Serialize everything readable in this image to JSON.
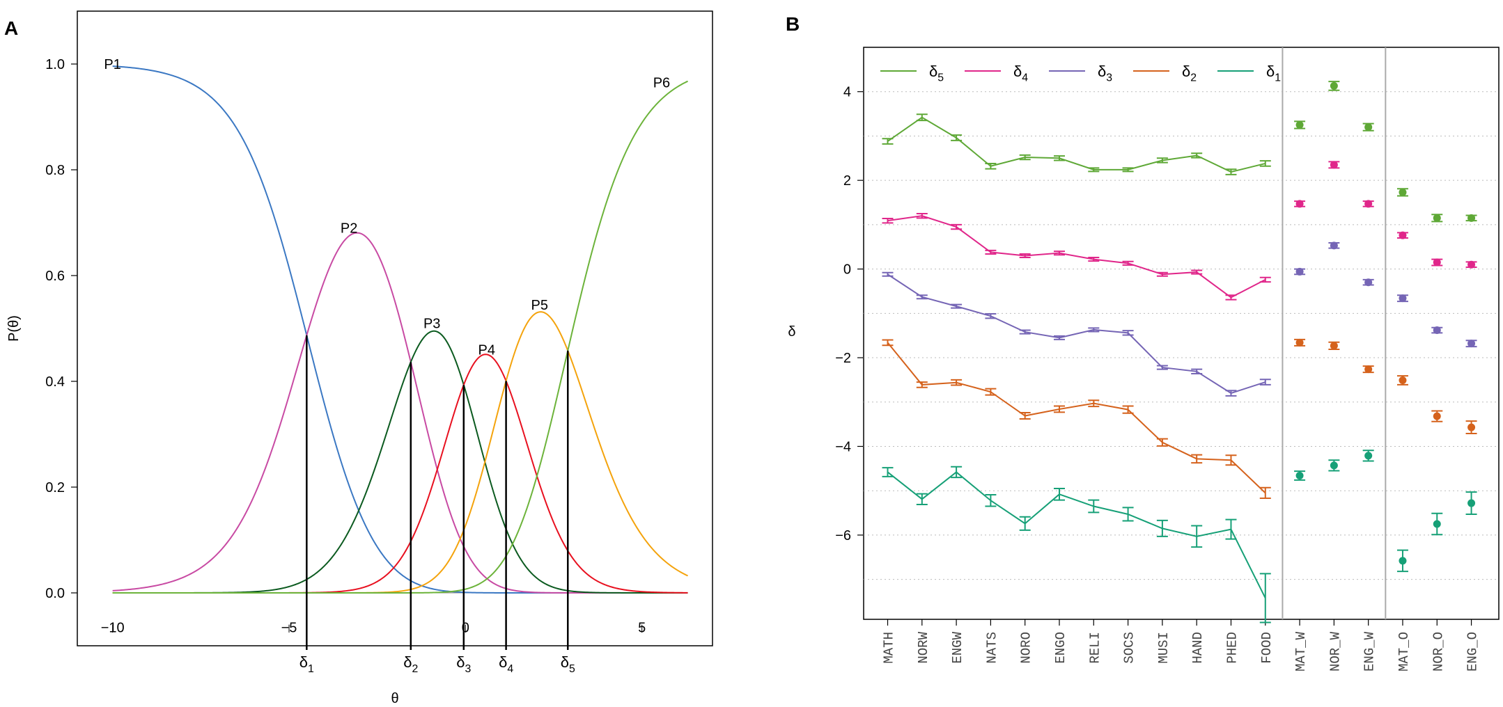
{
  "panels": {
    "a_letter": "A",
    "b_letter": "B"
  },
  "chart_data": [
    {
      "type": "line",
      "panel": "A",
      "xlabel": "θ",
      "ylabel": "P(θ)",
      "xlim": [
        -11,
        7
      ],
      "ylim": [
        -0.1,
        1.1
      ],
      "x_ticks": [
        -10,
        -5,
        0,
        5
      ],
      "y_ticks": [
        0.0,
        0.2,
        0.4,
        0.6,
        0.8,
        1.0
      ],
      "y_tick_labels": [
        "0.0",
        "0.2",
        "0.4",
        "0.6",
        "0.8",
        "1.0"
      ],
      "model": "partial credit",
      "thresholds": [
        {
          "name": "δ1",
          "base": "δ",
          "sub": "1",
          "value": -4.5
        },
        {
          "name": "δ2",
          "base": "δ",
          "sub": "2",
          "value": -1.55
        },
        {
          "name": "δ3",
          "base": "δ",
          "sub": "3",
          "value": -0.05
        },
        {
          "name": "δ4",
          "base": "δ",
          "sub": "4",
          "value": 1.15
        },
        {
          "name": "δ5",
          "base": "δ",
          "sub": "5",
          "value": 2.9
        }
      ],
      "x_range_drawn": [
        -10,
        6.3
      ],
      "series": [
        {
          "name": "P1",
          "color": "#3b78c3",
          "label_x": -10,
          "label_y": 1.0
        },
        {
          "name": "P2",
          "color": "#c84aa3",
          "label_x": -3.3,
          "label_y": 0.69
        },
        {
          "name": "P3",
          "color": "#0b5a1f",
          "label_x": -0.95,
          "label_y": 0.51
        },
        {
          "name": "P4",
          "color": "#e8101f",
          "label_x": 0.6,
          "label_y": 0.46
        },
        {
          "name": "P5",
          "color": "#f4a30c",
          "label_x": 2.1,
          "label_y": 0.545
        },
        {
          "name": "P6",
          "color": "#6cb33a",
          "label_x": 5.8,
          "label_y": 0.965
        }
      ]
    },
    {
      "type": "line",
      "panel": "B",
      "ylabel": "δ",
      "ylim": [
        -7.9,
        5.0
      ],
      "y_ticks": [
        -6,
        -4,
        -2,
        0,
        2,
        4
      ],
      "grid_y": [
        -7,
        -5,
        -3,
        -1,
        1,
        3
      ],
      "categories": [
        "MATH",
        "NORW",
        "ENGW",
        "NATS",
        "NORO",
        "ENGO",
        "RELI",
        "SOCS",
        "MUSI",
        "HAND",
        "PHED",
        "FOOD",
        "MAT_W",
        "NOR_W",
        "ENG_W",
        "MAT_O",
        "NOR_O",
        "ENG_O"
      ],
      "connected_count": 12,
      "legend": [
        {
          "base": "δ",
          "sub": "5",
          "color": "#5ea836"
        },
        {
          "base": "δ",
          "sub": "4",
          "color": "#e0268a"
        },
        {
          "base": "δ",
          "sub": "3",
          "color": "#7565b5"
        },
        {
          "base": "δ",
          "sub": "2",
          "color": "#d5621c"
        },
        {
          "base": "δ",
          "sub": "1",
          "color": "#16a077"
        }
      ],
      "series": [
        {
          "name": "δ5",
          "color": "#5ea836",
          "values": [
            2.88,
            3.42,
            2.96,
            2.32,
            2.52,
            2.5,
            2.24,
            2.24,
            2.45,
            2.56,
            2.19,
            2.38,
            3.25,
            4.13,
            3.2,
            1.73,
            1.15,
            1.15
          ],
          "errors": [
            0.06,
            0.07,
            0.06,
            0.06,
            0.05,
            0.05,
            0.04,
            0.04,
            0.05,
            0.05,
            0.06,
            0.06,
            0.08,
            0.1,
            0.08,
            0.08,
            0.08,
            0.06
          ]
        },
        {
          "name": "δ4",
          "color": "#e0268a",
          "values": [
            1.09,
            1.2,
            0.95,
            0.38,
            0.3,
            0.36,
            0.22,
            0.13,
            -0.12,
            -0.07,
            -0.64,
            -0.24,
            1.47,
            2.35,
            1.47,
            0.76,
            0.15,
            0.1
          ],
          "errors": [
            0.05,
            0.05,
            0.05,
            0.04,
            0.04,
            0.04,
            0.04,
            0.04,
            0.04,
            0.04,
            0.05,
            0.05,
            0.06,
            0.07,
            0.06,
            0.06,
            0.07,
            0.06
          ]
        },
        {
          "name": "δ3",
          "color": "#7565b5",
          "values": [
            -0.12,
            -0.63,
            -0.84,
            -1.06,
            -1.42,
            -1.55,
            -1.37,
            -1.44,
            -2.22,
            -2.31,
            -2.8,
            -2.55,
            -0.06,
            0.53,
            -0.3,
            -0.66,
            -1.38,
            -1.68
          ],
          "errors": [
            0.04,
            0.04,
            0.04,
            0.05,
            0.04,
            0.04,
            0.04,
            0.05,
            0.04,
            0.05,
            0.06,
            0.06,
            0.06,
            0.06,
            0.06,
            0.07,
            0.06,
            0.07
          ]
        },
        {
          "name": "δ2",
          "color": "#d5621c",
          "values": [
            -1.66,
            -2.61,
            -2.56,
            -2.77,
            -3.31,
            -3.16,
            -3.03,
            -3.17,
            -3.91,
            -4.28,
            -4.31,
            -5.05,
            -1.66,
            -1.73,
            -2.26,
            -2.51,
            -3.32,
            -3.57
          ],
          "errors": [
            0.06,
            0.06,
            0.06,
            0.07,
            0.07,
            0.07,
            0.07,
            0.08,
            0.08,
            0.09,
            0.11,
            0.12,
            0.07,
            0.08,
            0.07,
            0.1,
            0.12,
            0.14
          ]
        },
        {
          "name": "δ1",
          "color": "#16a077",
          "values": [
            -4.58,
            -5.19,
            -4.58,
            -5.22,
            -5.74,
            -5.08,
            -5.35,
            -5.53,
            -5.85,
            -6.03,
            -5.87,
            -7.42,
            -4.66,
            -4.43,
            -4.21,
            -6.58,
            -5.75,
            -5.28
          ],
          "errors": [
            0.1,
            0.12,
            0.12,
            0.13,
            0.15,
            0.13,
            0.14,
            0.15,
            0.18,
            0.24,
            0.22,
            0.55,
            0.1,
            0.12,
            0.12,
            0.24,
            0.24,
            0.25
          ]
        }
      ]
    }
  ]
}
